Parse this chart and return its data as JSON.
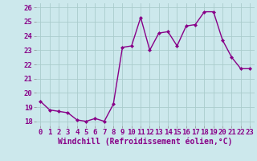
{
  "x": [
    0,
    1,
    2,
    3,
    4,
    5,
    6,
    7,
    8,
    9,
    10,
    11,
    12,
    13,
    14,
    15,
    16,
    17,
    18,
    19,
    20,
    21,
    22,
    23
  ],
  "y": [
    19.4,
    18.8,
    18.7,
    18.6,
    18.1,
    18.0,
    18.2,
    18.0,
    19.2,
    23.2,
    23.3,
    25.3,
    23.0,
    24.2,
    24.3,
    23.3,
    24.7,
    24.8,
    25.7,
    25.7,
    23.7,
    22.5,
    21.7,
    21.7
  ],
  "line_color": "#880088",
  "marker": "D",
  "marker_size": 2.0,
  "line_width": 1.0,
  "bg_color": "#cce8ec",
  "grid_color": "#aacccc",
  "xlabel": "Windchill (Refroidissement éolien,°C)",
  "xlabel_fontsize": 7,
  "tick_fontsize": 6.5,
  "ylim": [
    17.7,
    26.3
  ],
  "yticks": [
    18,
    19,
    20,
    21,
    22,
    23,
    24,
    25,
    26
  ],
  "xticks": [
    0,
    1,
    2,
    3,
    4,
    5,
    6,
    7,
    8,
    9,
    10,
    11,
    12,
    13,
    14,
    15,
    16,
    17,
    18,
    19,
    20,
    21,
    22,
    23
  ]
}
